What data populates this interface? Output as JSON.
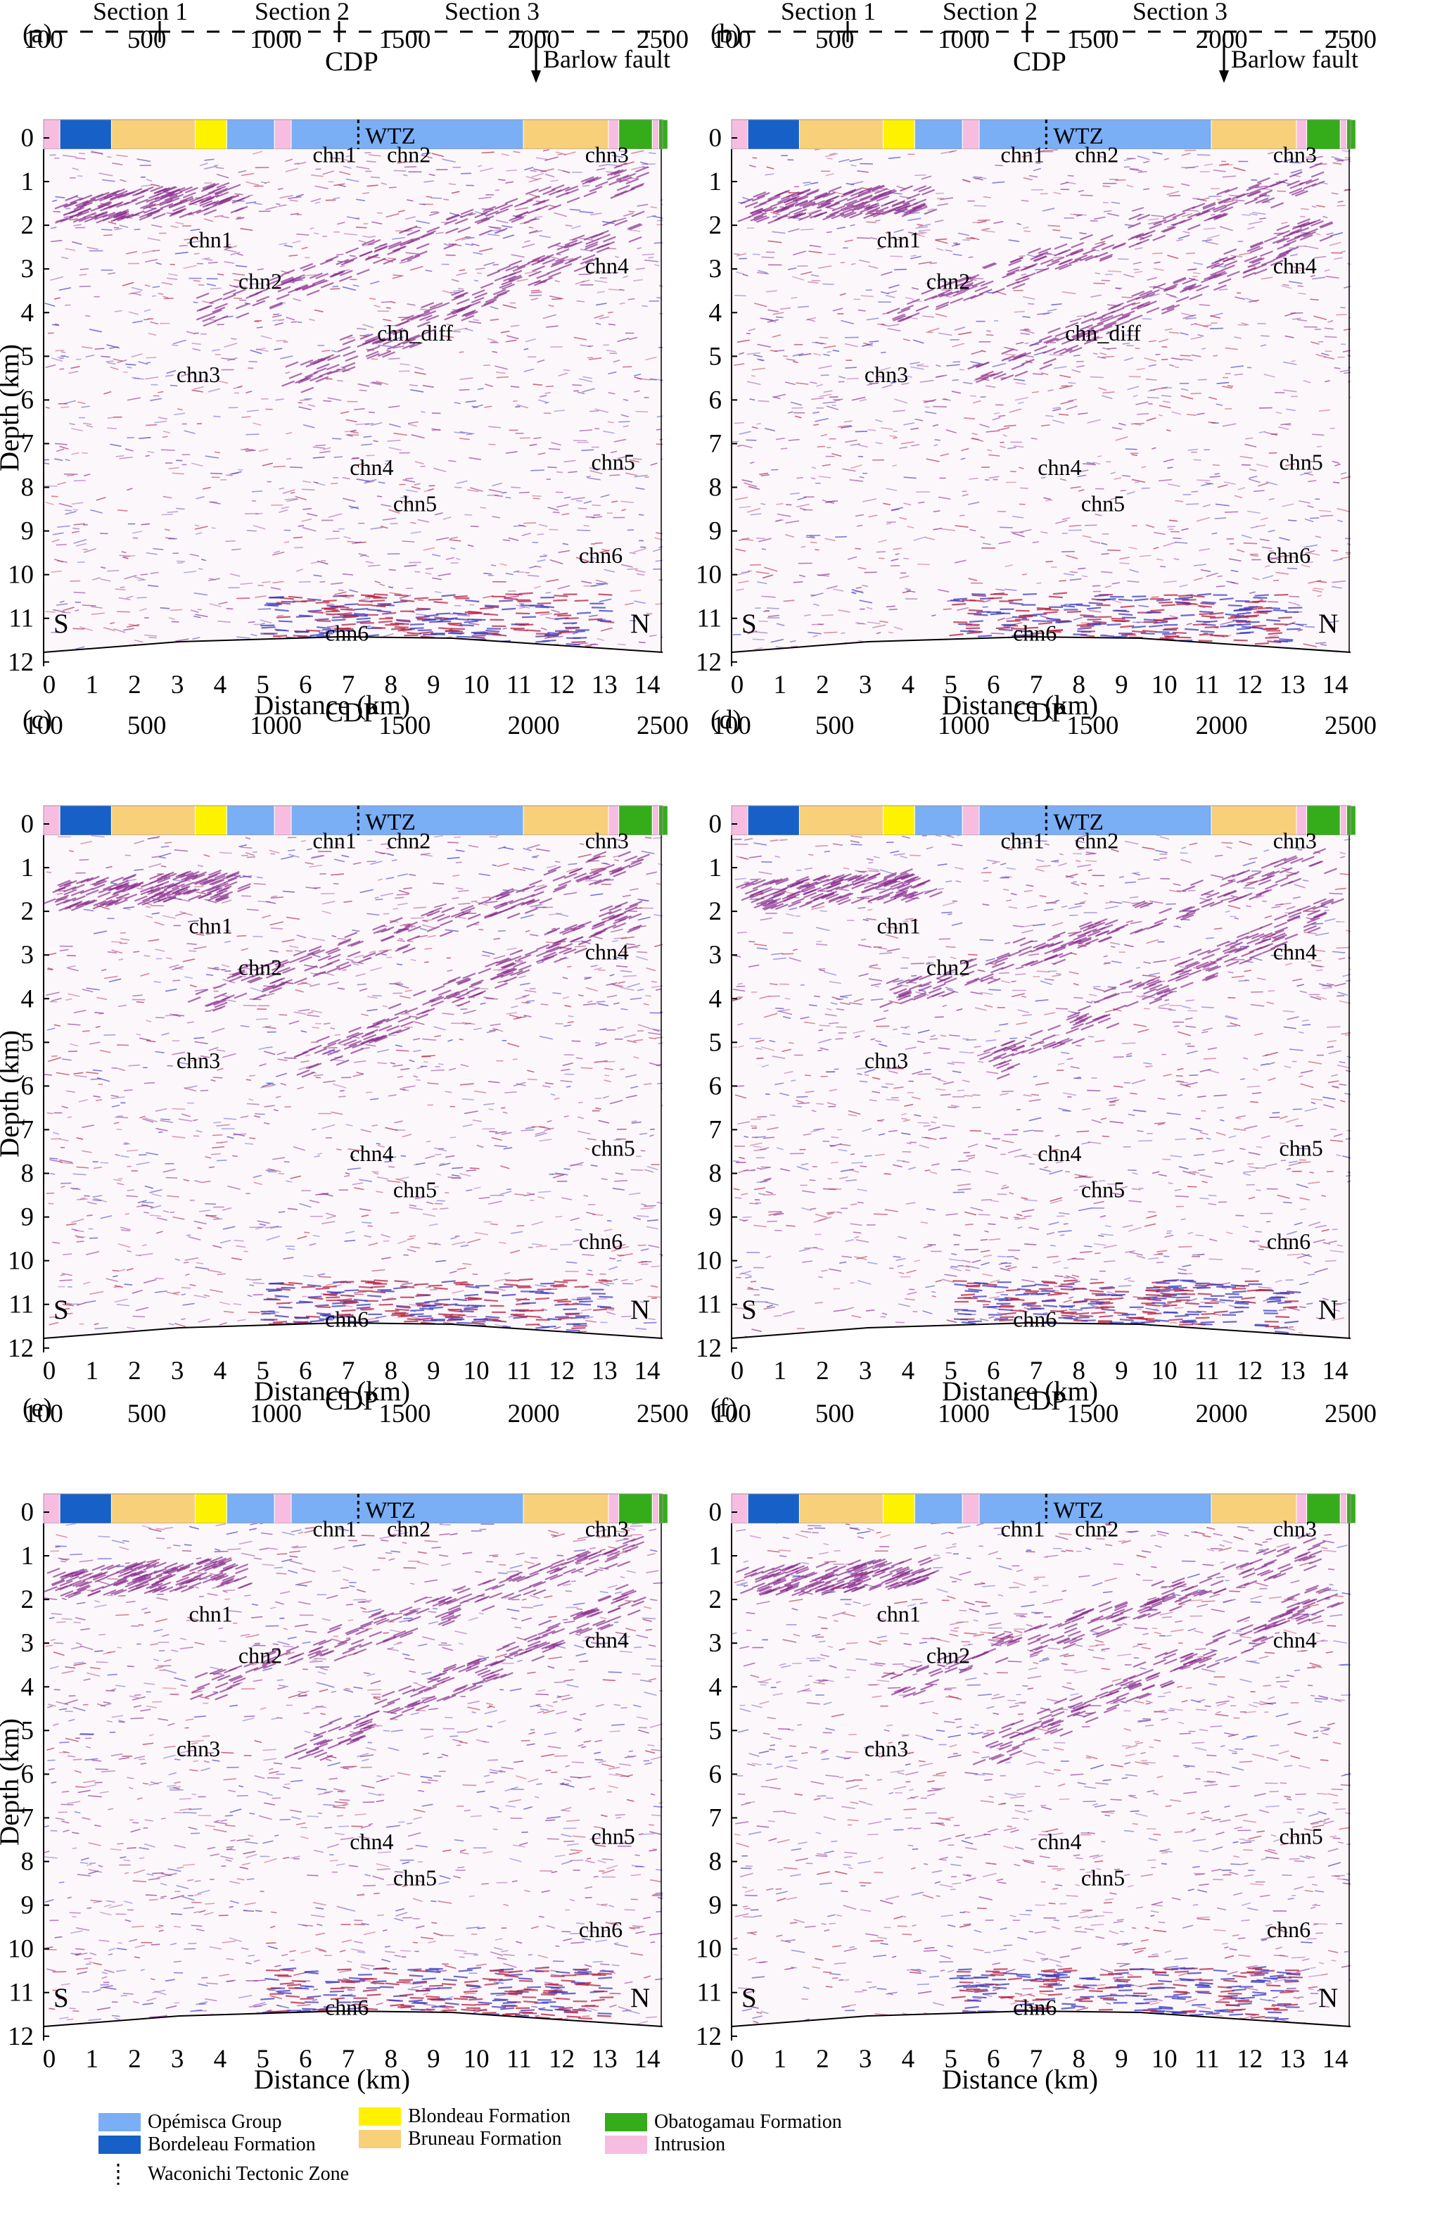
{
  "colors": {
    "opemisca": "#7aaef5",
    "bordeleau": "#1660c8",
    "blondeau": "#fff200",
    "bruneau": "#f8d07a",
    "obatogamau": "#35ac1a",
    "intrusion": "#f7bde0",
    "seismic_red": "#b52040",
    "seismic_blue": "#3a3ac0",
    "seismic_purple": "#8a2d8e"
  },
  "sections": [
    "Section 1",
    "Section 2",
    "Section 3"
  ],
  "barlow_fault": "Barlow fault",
  "cdp": {
    "title": "CDP",
    "ticks": [
      "100",
      "500",
      "1000",
      "1500",
      "2000",
      "2500"
    ],
    "range": [
      100,
      2500
    ]
  },
  "wtz_label": "WTZ",
  "depth": {
    "title": "Depth (km)",
    "ticks": [
      "0",
      "1",
      "2",
      "3",
      "4",
      "5",
      "6",
      "7",
      "8",
      "9",
      "10",
      "11",
      "12"
    ]
  },
  "distance": {
    "title": "Distance (km)",
    "ticks": [
      "0",
      "1",
      "2",
      "3",
      "4",
      "5",
      "6",
      "7",
      "8",
      "9",
      "10",
      "11",
      "12",
      "13",
      "14"
    ]
  },
  "orientation": {
    "south": "S",
    "north": "N"
  },
  "geology_strip": [
    {
      "unit": "intrusion",
      "from": 100,
      "to": 163
    },
    {
      "unit": "bordeleau",
      "from": 163,
      "to": 363
    },
    {
      "unit": "bruneau",
      "from": 363,
      "to": 688
    },
    {
      "unit": "blondeau",
      "from": 688,
      "to": 810
    },
    {
      "unit": "opemisca",
      "from": 810,
      "to": 995
    },
    {
      "unit": "intrusion",
      "from": 995,
      "to": 1060
    },
    {
      "unit": "opemisca",
      "from": 1060,
      "to": 1960
    },
    {
      "unit": "bruneau",
      "from": 1960,
      "to": 2290
    },
    {
      "unit": "intrusion",
      "from": 2290,
      "to": 2330
    },
    {
      "unit": "obatogamau",
      "from": 2330,
      "to": 2460
    },
    {
      "unit": "intrusion",
      "from": 2460,
      "to": 2485
    },
    {
      "unit": "obatogamau",
      "from": 2485,
      "to": 2520
    }
  ],
  "panels": [
    {
      "letter": "(a)",
      "labels": [
        "chn1",
        "chn2",
        "chn3",
        "chn1",
        "chn2",
        "chn4",
        "chn_diff",
        "chn3",
        "chn5",
        "chn4",
        "chn5",
        "chn6",
        "chn6"
      ]
    },
    {
      "letter": "(b)",
      "labels": [
        "chn1",
        "chn2",
        "chn3",
        "chn1",
        "chn2",
        "chn4",
        "chn_diff",
        "chn3",
        "chn5",
        "chn4",
        "chn5",
        "chn6",
        "chn6"
      ]
    },
    {
      "letter": "(c)",
      "labels": [
        "chn1",
        "chn2",
        "chn3",
        "chn1",
        "chn2",
        "chn4",
        "chn3",
        "chn5",
        "chn4",
        "chn5",
        "chn6",
        "chn6"
      ]
    },
    {
      "letter": "(d)",
      "labels": [
        "chn1",
        "chn2",
        "chn3",
        "chn1",
        "chn2",
        "chn4",
        "chn3",
        "chn5",
        "chn4",
        "chn5",
        "chn6",
        "chn6"
      ]
    },
    {
      "letter": "(e)",
      "labels": [
        "chn1",
        "chn2",
        "chn3",
        "chn1",
        "chn2",
        "chn4",
        "chn3",
        "chn5",
        "chn4",
        "chn5",
        "chn6",
        "chn6"
      ]
    },
    {
      "letter": "(f)",
      "labels": [
        "chn1",
        "chn2",
        "chn3",
        "chn1",
        "chn2",
        "chn4",
        "chn3",
        "chn5",
        "chn4",
        "chn5",
        "chn6",
        "chn6"
      ]
    }
  ],
  "legend": [
    {
      "key": "opemisca",
      "label": "Opémisca Group"
    },
    {
      "key": "bordeleau",
      "label": "Bordeleau Formation"
    },
    {
      "key": "blondeau",
      "label": "Blondeau Formation"
    },
    {
      "key": "bruneau",
      "label": "Bruneau Formation"
    },
    {
      "key": "obatogamau",
      "label": "Obatogamau Formation"
    },
    {
      "key": "intrusion",
      "label": "Intrusion"
    }
  ],
  "legend_wtz": "Waconichi Tectonic Zone"
}
